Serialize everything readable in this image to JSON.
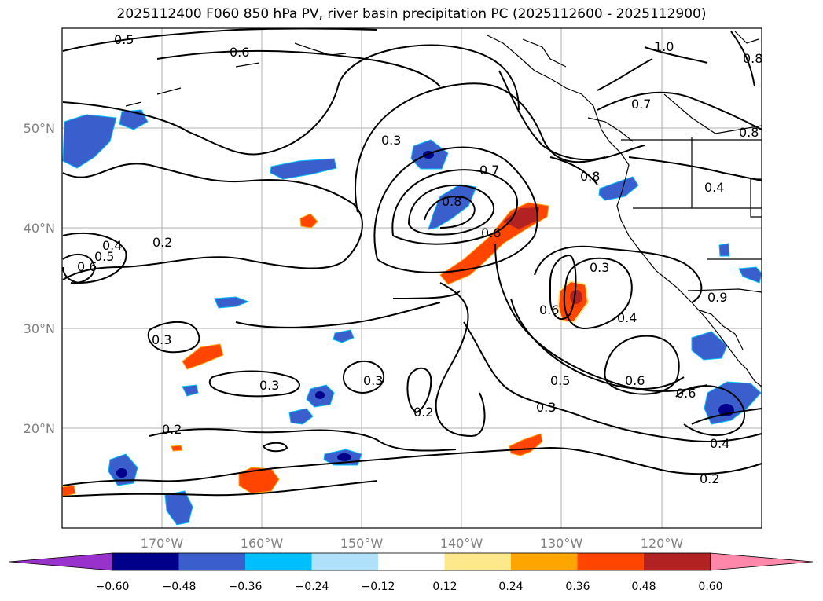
{
  "title": "2025112400 F060 850 hPa PV, river basin precipitation PC (2025112600 - 2025112900)",
  "lat_labels": [
    "50°N",
    "40°N",
    "30°N",
    "20°N"
  ],
  "lon_labels": [
    "170°W",
    "160°W",
    "150°W",
    "140°W",
    "130°W",
    "120°W"
  ],
  "contour_labels": [
    "0.5",
    "0.6",
    "1.0",
    "0.8",
    "0.3",
    "0.7",
    "0.8",
    "0.7",
    "0.8",
    "0.8",
    "0.4",
    "0.2",
    "0.4",
    "0.5",
    "0.6",
    "0.6",
    "0.3",
    "0.6",
    "0.4",
    "0.9",
    "0.3",
    "0.3",
    "0.3",
    "0.2",
    "0.5",
    "0.6",
    "0.3",
    "0.6",
    "0.2",
    "0.4",
    "0.2"
  ],
  "colorbar": {
    "ticks": [
      "−0.60",
      "−0.48",
      "−0.36",
      "−0.24",
      "−0.12",
      "0.12",
      "0.24",
      "0.36",
      "0.48",
      "0.60"
    ],
    "colors": [
      "#9932cc",
      "#00008b",
      "#3a5fcd",
      "#00bfff",
      "#afe2fa",
      "#ffffff",
      "#fde98b",
      "#ffa500",
      "#ff4500",
      "#b22222",
      "#ff88aa"
    ]
  }
}
